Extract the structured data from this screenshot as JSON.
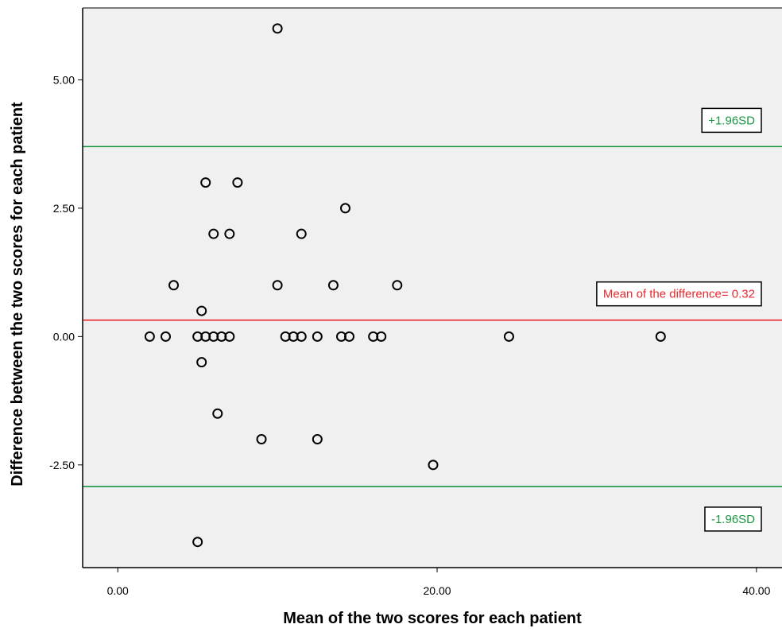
{
  "chart_data": {
    "type": "scatter",
    "title": "",
    "xlabel": "Mean of the two scores for each patient",
    "ylabel": "Difference between the two scores for each patient",
    "xlim": [
      -2.2,
      41.6
    ],
    "ylim": [
      -4.5,
      6.4
    ],
    "x_ticks": [
      {
        "value": 0,
        "label": "0.00"
      },
      {
        "value": 20,
        "label": "20.00"
      },
      {
        "value": 40,
        "label": "40.00"
      }
    ],
    "y_ticks": [
      {
        "value": -2.5,
        "label": "-2.50"
      },
      {
        "value": 0,
        "label": "0.00"
      },
      {
        "value": 2.5,
        "label": "2.50"
      },
      {
        "value": 5,
        "label": "5.00"
      }
    ],
    "grid": false,
    "points": [
      {
        "x": 10.0,
        "y": 6.0
      },
      {
        "x": 5.5,
        "y": 3.0
      },
      {
        "x": 7.5,
        "y": 3.0
      },
      {
        "x": 14.25,
        "y": 2.5
      },
      {
        "x": 6.0,
        "y": 2.0
      },
      {
        "x": 7.0,
        "y": 2.0
      },
      {
        "x": 11.5,
        "y": 2.0
      },
      {
        "x": 3.5,
        "y": 1.0
      },
      {
        "x": 10.0,
        "y": 1.0
      },
      {
        "x": 13.5,
        "y": 1.0
      },
      {
        "x": 17.5,
        "y": 1.0
      },
      {
        "x": 5.25,
        "y": 0.5
      },
      {
        "x": 2.0,
        "y": 0.0
      },
      {
        "x": 3.0,
        "y": 0.0
      },
      {
        "x": 5.0,
        "y": 0.0
      },
      {
        "x": 5.5,
        "y": 0.0
      },
      {
        "x": 6.0,
        "y": 0.0
      },
      {
        "x": 6.5,
        "y": 0.0
      },
      {
        "x": 7.0,
        "y": 0.0
      },
      {
        "x": 10.5,
        "y": 0.0
      },
      {
        "x": 11.0,
        "y": 0.0
      },
      {
        "x": 11.5,
        "y": 0.0
      },
      {
        "x": 12.5,
        "y": 0.0
      },
      {
        "x": 14.0,
        "y": 0.0
      },
      {
        "x": 14.5,
        "y": 0.0
      },
      {
        "x": 16.0,
        "y": 0.0
      },
      {
        "x": 16.5,
        "y": 0.0
      },
      {
        "x": 24.5,
        "y": 0.0
      },
      {
        "x": 34.0,
        "y": 0.0
      },
      {
        "x": 5.25,
        "y": -0.5
      },
      {
        "x": 6.25,
        "y": -1.5
      },
      {
        "x": 9.0,
        "y": -2.0
      },
      {
        "x": 12.5,
        "y": -2.0
      },
      {
        "x": 19.75,
        "y": -2.5
      },
      {
        "x": 5.0,
        "y": -4.0
      }
    ],
    "reference_lines": [
      {
        "y": 3.7,
        "label": "+1.96SD",
        "color": "#1a9641"
      },
      {
        "y": 0.32,
        "label": "Mean of the difference= 0.32",
        "color": "#e8282e"
      },
      {
        "y": -2.92,
        "label": "-1.96SD",
        "color": "#1a9641"
      }
    ],
    "plot_background": "#f0f0f0",
    "marker_style": "hollow-circle"
  }
}
